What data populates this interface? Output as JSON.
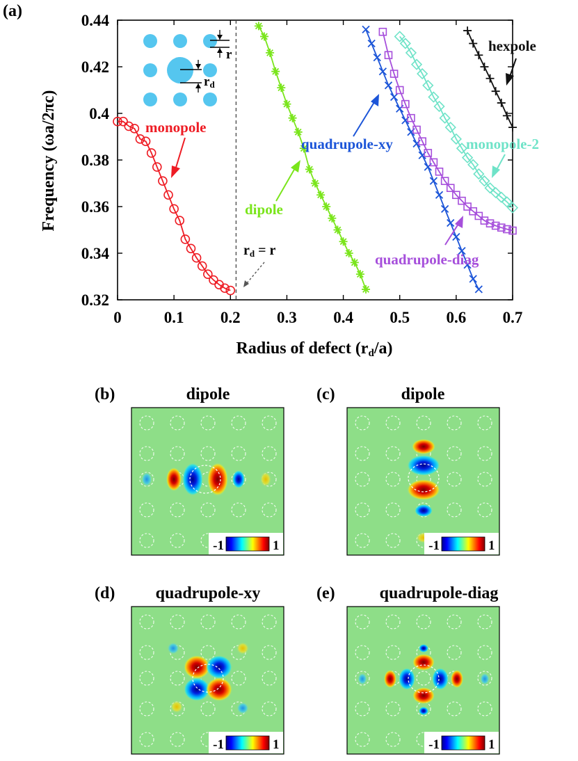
{
  "figure_labels": {
    "a": "(a)",
    "b": "(b)",
    "c": "(c)",
    "d": "(d)",
    "e": "(e)"
  },
  "chart_data": {
    "type": "line",
    "title": "",
    "xlabel": "Radius of defect (rd/a)",
    "xlabel_parts": {
      "main": "Radius of defect (r",
      "sub": "d",
      "end": "/a)"
    },
    "ylabel": "Frequency  (ωa/2πc)",
    "xlim": [
      0,
      0.7
    ],
    "ylim": [
      0.32,
      0.44
    ],
    "xticks": [
      0,
      0.1,
      0.2,
      0.3,
      0.4,
      0.5,
      0.6,
      0.7
    ],
    "xtick_labels": [
      "0",
      "0.1",
      "0.2",
      "0.3",
      "0.4",
      "0.5",
      "0.6",
      "0.7"
    ],
    "yticks": [
      0.32,
      0.34,
      0.36,
      0.38,
      0.4,
      0.42,
      0.44
    ],
    "ytick_labels": [
      "0.32",
      "0.34",
      "0.36",
      "0.38",
      "0.4",
      "0.42",
      "0.44"
    ],
    "vline": {
      "x": 0.21,
      "label": "rd = r",
      "label_parts": {
        "a": "r",
        "sub": "d",
        "b": " = r"
      }
    },
    "inset_labels": {
      "r": "r",
      "rd_main": "r",
      "rd_sub": "d"
    },
    "series": [
      {
        "name": "monopole",
        "color": "#ee1c24",
        "marker": "circle",
        "x": [
          0.0,
          0.01,
          0.02,
          0.03,
          0.04,
          0.05,
          0.06,
          0.07,
          0.08,
          0.09,
          0.1,
          0.11,
          0.12,
          0.13,
          0.14,
          0.15,
          0.16,
          0.17,
          0.18,
          0.19,
          0.2
        ],
        "y": [
          0.3965,
          0.3965,
          0.3945,
          0.3935,
          0.389,
          0.388,
          0.383,
          0.377,
          0.371,
          0.365,
          0.359,
          0.354,
          0.346,
          0.342,
          0.338,
          0.3345,
          0.331,
          0.3285,
          0.3265,
          0.325,
          0.324
        ]
      },
      {
        "name": "dipole",
        "color": "#7ae51b",
        "marker": "asterisk",
        "x": [
          0.25,
          0.26,
          0.27,
          0.28,
          0.29,
          0.3,
          0.31,
          0.32,
          0.33,
          0.34,
          0.35,
          0.36,
          0.37,
          0.38,
          0.39,
          0.4,
          0.41,
          0.42,
          0.43,
          0.44
        ],
        "y": [
          0.4375,
          0.433,
          0.426,
          0.418,
          0.411,
          0.404,
          0.398,
          0.392,
          0.385,
          0.376,
          0.37,
          0.365,
          0.36,
          0.355,
          0.35,
          0.345,
          0.34,
          0.336,
          0.331,
          0.3245
        ]
      },
      {
        "name": "quadrupole-xy",
        "color": "#1c55d8",
        "marker": "x",
        "x": [
          0.44,
          0.45,
          0.46,
          0.47,
          0.48,
          0.49,
          0.5,
          0.51,
          0.52,
          0.53,
          0.54,
          0.55,
          0.56,
          0.57,
          0.58,
          0.59,
          0.6,
          0.61,
          0.62,
          0.63,
          0.64
        ],
        "y": [
          0.436,
          0.43,
          0.424,
          0.418,
          0.412,
          0.407,
          0.402,
          0.397,
          0.392,
          0.387,
          0.382,
          0.377,
          0.371,
          0.365,
          0.359,
          0.353,
          0.347,
          0.341,
          0.335,
          0.329,
          0.3245
        ]
      },
      {
        "name": "quadrupole-diag",
        "color": "#a64fdb",
        "marker": "square",
        "x": [
          0.47,
          0.48,
          0.49,
          0.5,
          0.51,
          0.52,
          0.53,
          0.54,
          0.55,
          0.56,
          0.57,
          0.58,
          0.59,
          0.6,
          0.61,
          0.62,
          0.63,
          0.64,
          0.65,
          0.66,
          0.67,
          0.68,
          0.69,
          0.7
        ],
        "y": [
          0.435,
          0.425,
          0.417,
          0.41,
          0.404,
          0.398,
          0.393,
          0.388,
          0.383,
          0.379,
          0.375,
          0.371,
          0.368,
          0.365,
          0.3625,
          0.36,
          0.358,
          0.356,
          0.354,
          0.3528,
          0.3518,
          0.351,
          0.3503,
          0.3497
        ]
      },
      {
        "name": "monopole-2",
        "color": "#6fe3c8",
        "marker": "diamond",
        "x": [
          0.5,
          0.51,
          0.52,
          0.53,
          0.54,
          0.55,
          0.56,
          0.57,
          0.58,
          0.59,
          0.6,
          0.61,
          0.62,
          0.63,
          0.64,
          0.65,
          0.66,
          0.67,
          0.68,
          0.69,
          0.7
        ],
        "y": [
          0.433,
          0.43,
          0.426,
          0.421,
          0.417,
          0.412,
          0.407,
          0.403,
          0.398,
          0.394,
          0.389,
          0.385,
          0.381,
          0.378,
          0.374,
          0.371,
          0.368,
          0.366,
          0.364,
          0.362,
          0.3595
        ]
      },
      {
        "name": "hexpole",
        "color": "#111111",
        "marker": "plus",
        "x": [
          0.62,
          0.63,
          0.64,
          0.65,
          0.66,
          0.67,
          0.68,
          0.69,
          0.7
        ],
        "y": [
          0.4355,
          0.43,
          0.425,
          0.42,
          0.415,
          0.4095,
          0.4045,
          0.399,
          0.394
        ]
      }
    ],
    "annotations": [
      {
        "text": "monopole",
        "color": "#ee1c24"
      },
      {
        "text": "dipole",
        "color": "#7ae51b"
      },
      {
        "text": "quadrupole-xy",
        "color": "#1c55d8"
      },
      {
        "text": "monopole-2",
        "color": "#6fe3c8"
      },
      {
        "text": "hexpole",
        "color": "#111111"
      },
      {
        "text": "quadrupole-diag",
        "color": "#a64fdb"
      }
    ]
  },
  "field_panels": [
    {
      "label": "(b)",
      "title": "dipole"
    },
    {
      "label": "(c)",
      "title": "dipole"
    },
    {
      "label": "(d)",
      "title": "quadrupole-xy"
    },
    {
      "label": "(e)",
      "title": "quadrupole-diag"
    }
  ],
  "colorbar": {
    "min_label": "-1",
    "max_label": "1"
  }
}
